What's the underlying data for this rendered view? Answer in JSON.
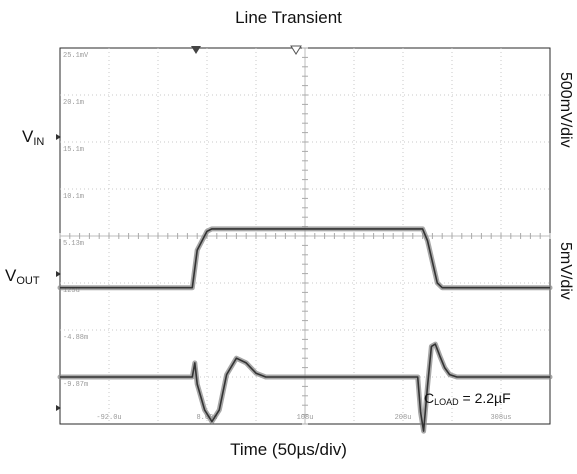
{
  "chart_data": {
    "type": "line",
    "title": "Line Transient",
    "xlabel": "Time (50µs/div)",
    "right_labels": {
      "vin_scale": "500mV/div",
      "vout_scale": "5mV/div"
    },
    "channel_labels": {
      "vin_main": "V",
      "vin_sub": "IN",
      "vout_main": "V",
      "vout_sub": "OUT"
    },
    "annotation": {
      "cload_main": "C",
      "cload_sub": "LOAD",
      "cload_value": " = 2.2µF"
    },
    "grid": true,
    "divisions": {
      "x": 10,
      "y": 8
    },
    "x_tick_labels": [
      "-92.0u",
      "8.00u",
      "108u",
      "208u",
      "308us"
    ],
    "y_tick_labels": [
      "25.1mV",
      "20.1m",
      "15.1m",
      "10.1m",
      "5.13m",
      "125u",
      "-4.88m",
      "-9.87m"
    ],
    "series": [
      {
        "name": "VIN",
        "x_div": [
          0,
          2.7,
          2.8,
          3.0,
          3.1,
          7.4,
          7.5,
          7.7,
          7.8,
          10
        ],
        "y_div": [
          2.9,
          2.9,
          3.7,
          4.1,
          4.15,
          4.15,
          3.9,
          3.0,
          2.9,
          2.9
        ]
      },
      {
        "name": "VOUT",
        "x_div": [
          0,
          2.7,
          2.75,
          2.8,
          2.95,
          3.1,
          3.25,
          3.4,
          3.6,
          3.8,
          4.0,
          4.2,
          7.3,
          7.36,
          7.42,
          7.5,
          7.58,
          7.66,
          7.75,
          7.85,
          7.95,
          8.1,
          8.3,
          10
        ],
        "y_div": [
          1.0,
          1.0,
          1.3,
          0.85,
          0.3,
          0.05,
          0.3,
          1.05,
          1.4,
          1.3,
          1.08,
          1.0,
          1.0,
          0.25,
          -0.15,
          0.8,
          1.65,
          1.7,
          1.45,
          1.2,
          1.05,
          1.0,
          1.0,
          1.0
        ]
      }
    ]
  }
}
